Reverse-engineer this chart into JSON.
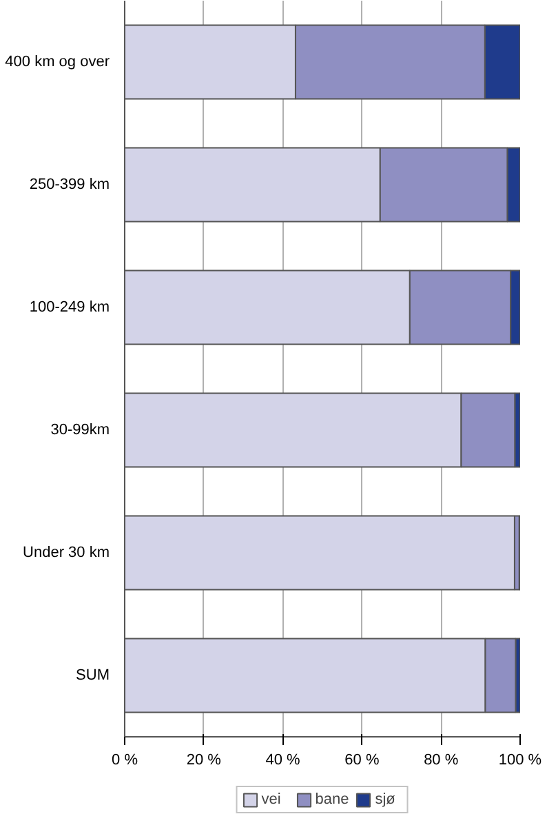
{
  "chart_data": {
    "type": "bar",
    "orientation": "horizontal",
    "stacked": true,
    "categories": [
      "400 km og over",
      "250-399 km",
      "100-249 km",
      "30-99km",
      "Under 30 km",
      "SUM"
    ],
    "series": [
      {
        "name": "vei",
        "color": "#d3d3e8",
        "values": [
          43.2,
          64.6,
          72.1,
          85.1,
          98.6,
          91.2
        ]
      },
      {
        "name": "bane",
        "color": "#8f8fc2",
        "values": [
          47.9,
          32.2,
          25.5,
          13.6,
          1.2,
          7.7
        ]
      },
      {
        "name": "sjø",
        "color": "#1f3b8c",
        "values": [
          8.9,
          3.2,
          2.4,
          1.3,
          0.2,
          1.1
        ]
      }
    ],
    "xlim": [
      0,
      100
    ],
    "xticks": [
      {
        "value": 0,
        "label": "0 %"
      },
      {
        "value": 20,
        "label": "20 %"
      },
      {
        "value": 40,
        "label": "40 %"
      },
      {
        "value": 60,
        "label": "60 %"
      },
      {
        "value": 80,
        "label": "80 %"
      },
      {
        "value": 100,
        "label": "100 %"
      }
    ],
    "grid": "x",
    "legend": "bottom"
  }
}
